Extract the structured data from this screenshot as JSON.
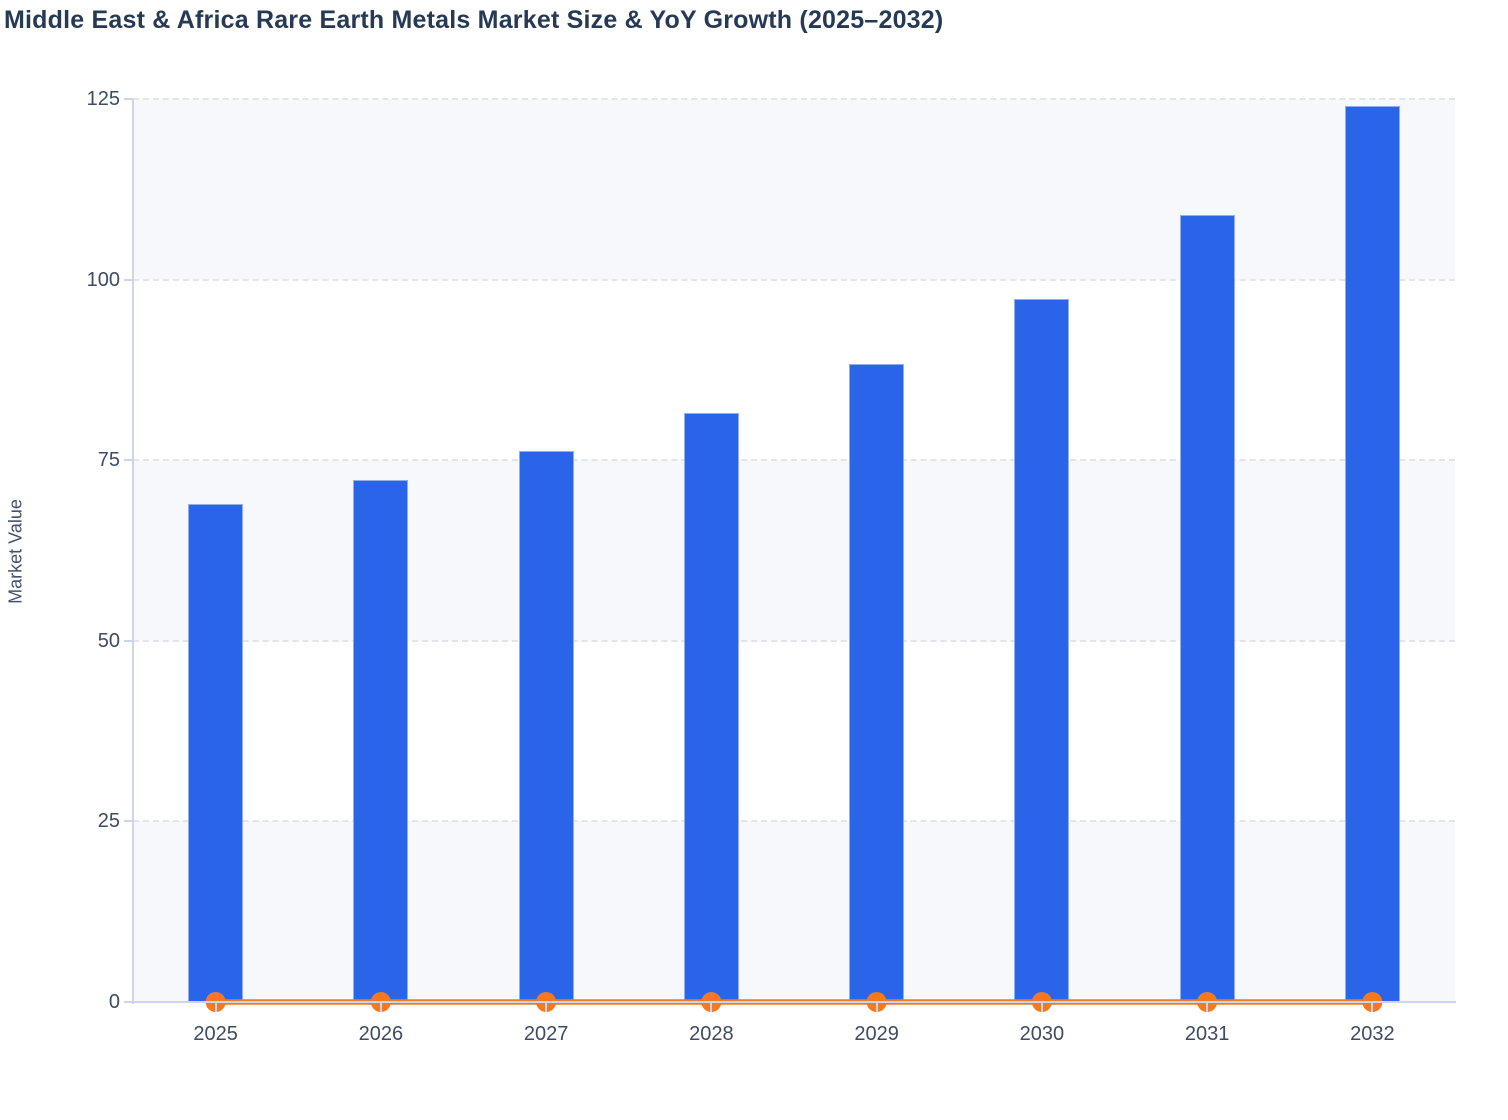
{
  "chart_data": {
    "type": "combo",
    "title": "Middle East & Africa Rare Earth Metals Market Size & YoY Growth (2025–2032)",
    "ylabel": "Market Value",
    "xlabel": "",
    "categories": [
      "2025",
      "2026",
      "2027",
      "2028",
      "2029",
      "2030",
      "2031",
      "2032"
    ],
    "series": [
      {
        "name": "Market Size",
        "type": "bar",
        "color": "#2a64e8",
        "values": [
          69,
          72.2,
          76.3,
          81.5,
          88.3,
          97.3,
          109,
          124
        ]
      },
      {
        "name": "YoY Growth",
        "type": "line",
        "color": "#f6791f",
        "values": [
          0,
          0,
          0,
          0,
          0,
          0,
          0,
          0
        ]
      }
    ],
    "ylim": [
      0,
      125
    ],
    "yticks": [
      0,
      25,
      50,
      75,
      100,
      125
    ],
    "grid": "dashed-horizontal",
    "background_bands": "alternating horizontal rows, shaded from top: 100-125, 50-75, 0-25",
    "legend": "none",
    "colors": {
      "bar": "#2a64e8",
      "bar_border": "#93aeef",
      "line": "#f6791f",
      "title": "#273a55",
      "tick_label": "#3f4b61",
      "axis_line": "#ccd5ea",
      "gridline": "#e3e5e9",
      "band_shade": "#f6f8fb",
      "page_background": "#ffffff"
    }
  }
}
